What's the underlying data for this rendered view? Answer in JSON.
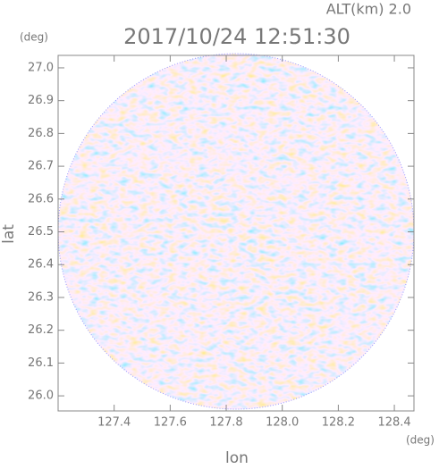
{
  "chart_data": {
    "type": "radar-ppi",
    "title": "2017/10/24 12:51:30",
    "subtitle": "ALT(km) 2.0",
    "x_label": "lon",
    "y_label": "lat",
    "x_unit": "(deg)",
    "y_unit": "(deg)",
    "xlim": [
      127.2,
      128.47
    ],
    "ylim": [
      25.954,
      27.038
    ],
    "xticks": [
      127.4,
      127.6,
      127.8,
      {
        "value": 128,
        "label": "128.0"
      },
      128.2,
      128.4
    ],
    "yticks": [
      {
        "value": 26,
        "label": "26.0"
      },
      26.1,
      26.2,
      26.3,
      26.4,
      26.5,
      26.6,
      26.7,
      26.8,
      26.9,
      {
        "value": 27,
        "label": "27.0"
      }
    ]
  }
}
